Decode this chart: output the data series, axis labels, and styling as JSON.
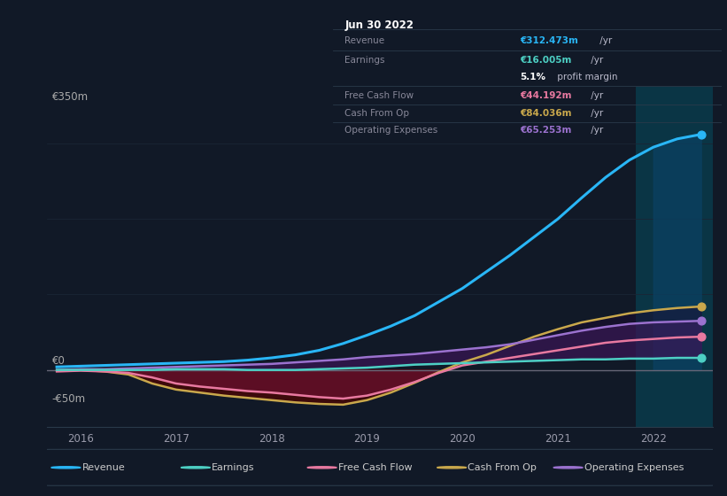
{
  "background_color": "#111927",
  "plot_bg_color": "#111927",
  "highlight_bg_color": "#0a3545",
  "x_years": [
    2015.75,
    2016.0,
    2016.25,
    2016.5,
    2016.75,
    2017.0,
    2017.25,
    2017.5,
    2017.75,
    2018.0,
    2018.25,
    2018.5,
    2018.75,
    2019.0,
    2019.25,
    2019.5,
    2019.75,
    2020.0,
    2020.25,
    2020.5,
    2020.75,
    2021.0,
    2021.25,
    2021.5,
    2021.75,
    2022.0,
    2022.25,
    2022.5
  ],
  "revenue": [
    4,
    5,
    6,
    7,
    8,
    9,
    10,
    11,
    13,
    16,
    20,
    26,
    35,
    46,
    58,
    72,
    90,
    108,
    130,
    152,
    176,
    200,
    228,
    255,
    278,
    295,
    306,
    312
  ],
  "earnings": [
    0,
    0,
    0,
    0,
    0,
    1,
    1,
    1,
    0,
    0,
    0,
    1,
    2,
    3,
    5,
    7,
    8,
    9,
    10,
    11,
    12,
    13,
    14,
    14,
    15,
    15,
    16,
    16
  ],
  "free_cash_flow": [
    -2,
    -1,
    -2,
    -4,
    -10,
    -18,
    -22,
    -25,
    -28,
    -30,
    -33,
    -36,
    -38,
    -34,
    -26,
    -16,
    -4,
    6,
    11,
    16,
    21,
    26,
    31,
    36,
    39,
    41,
    43,
    44
  ],
  "cash_from_op": [
    -1,
    0,
    -2,
    -6,
    -18,
    -26,
    -30,
    -34,
    -37,
    -40,
    -43,
    -45,
    -46,
    -40,
    -30,
    -17,
    -3,
    10,
    20,
    32,
    44,
    54,
    63,
    69,
    75,
    79,
    82,
    84
  ],
  "operating_expenses": [
    0,
    1,
    1,
    2,
    3,
    4,
    5,
    6,
    7,
    8,
    10,
    12,
    14,
    17,
    19,
    21,
    24,
    27,
    30,
    34,
    40,
    46,
    52,
    57,
    61,
    63,
    64,
    65
  ],
  "revenue_color": "#29b6f6",
  "earnings_color": "#4dd0c4",
  "free_cash_flow_color": "#e879a0",
  "cash_from_op_color": "#c9a84c",
  "operating_expenses_color": "#9b72cf",
  "zero_line_color": "#666677",
  "grid_color": "#1a2535",
  "ylim_min": -75,
  "ylim_max": 375,
  "ytick_vals": [
    -50,
    0,
    350
  ],
  "ytick_labels": [
    "-€50m",
    "€0",
    "€350m"
  ],
  "xtick_positions": [
    2016,
    2017,
    2018,
    2019,
    2020,
    2021,
    2022
  ],
  "xtick_labels": [
    "2016",
    "2017",
    "2018",
    "2019",
    "2020",
    "2021",
    "2022"
  ],
  "xlim_min": 2015.65,
  "xlim_max": 2022.62,
  "highlight_start": 2021.82,
  "highlight_end": 2022.62,
  "info_box": {
    "title": "Jun 30 2022",
    "rows": [
      {
        "label": "Revenue",
        "value": "€312.473m",
        "suffix": " /yr",
        "value_color": "#29b6f6",
        "has_divider_above": true
      },
      {
        "label": "Earnings",
        "value": "€16.005m",
        "suffix": " /yr",
        "value_color": "#4dd0c4",
        "has_divider_above": true
      },
      {
        "label": "",
        "value": "5.1%",
        "suffix": " profit margin",
        "value_color": "#ffffff",
        "has_divider_above": false
      },
      {
        "label": "Free Cash Flow",
        "value": "€44.192m",
        "suffix": " /yr",
        "value_color": "#e879a0",
        "has_divider_above": true
      },
      {
        "label": "Cash From Op",
        "value": "€84.036m",
        "suffix": " /yr",
        "value_color": "#c9a84c",
        "has_divider_above": true
      },
      {
        "label": "Operating Expenses",
        "value": "€65.253m",
        "suffix": " /yr",
        "value_color": "#9b72cf",
        "has_divider_above": true
      }
    ]
  },
  "legend": [
    {
      "label": "Revenue",
      "color": "#29b6f6"
    },
    {
      "label": "Earnings",
      "color": "#4dd0c4"
    },
    {
      "label": "Free Cash Flow",
      "color": "#e879a0"
    },
    {
      "label": "Cash From Op",
      "color": "#c9a84c"
    },
    {
      "label": "Operating Expenses",
      "color": "#9b72cf"
    }
  ]
}
